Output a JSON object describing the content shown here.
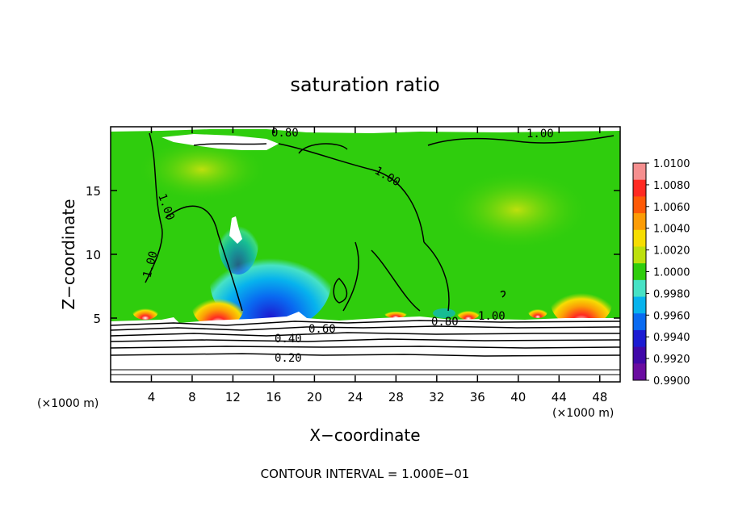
{
  "chart_data": {
    "type": "heatmap",
    "title": "saturation ratio",
    "xlabel": "X−coordinate",
    "ylabel": "Z−coordinate",
    "x_unit": "(×1000 m)",
    "z_unit": "(×1000 m)",
    "xlim": [
      0,
      50
    ],
    "ylim": [
      0,
      20
    ],
    "x_ticks": [
      4,
      8,
      12,
      16,
      20,
      24,
      28,
      32,
      36,
      40,
      44,
      48
    ],
    "y_ticks": [
      5,
      10,
      15
    ],
    "colorbar": {
      "min": 0.99,
      "max": 1.01,
      "ticks": [
        "1.0100",
        "1.0080",
        "1.0060",
        "1.0040",
        "1.0020",
        "1.0000",
        "0.9980",
        "0.9960",
        "0.9940",
        "0.9920",
        "0.9900"
      ],
      "colors": [
        "#f58f8f",
        "#ff2a22",
        "#fe5a07",
        "#fc9c06",
        "#f6dd02",
        "#bde00d",
        "#2fcd0d",
        "#47e2c5",
        "#07b3ed",
        "#096af1",
        "#1c1bd2",
        "#4008a8",
        "#6a0ca0"
      ]
    },
    "contour_labels": [
      "0.80",
      "1.00",
      "1.00",
      "1.00",
      "1.00",
      "0.60",
      "0.40",
      "0.20",
      "0.80",
      "1.00"
    ],
    "footer": "CONTOUR INTERVAL = 1.000E−01"
  }
}
